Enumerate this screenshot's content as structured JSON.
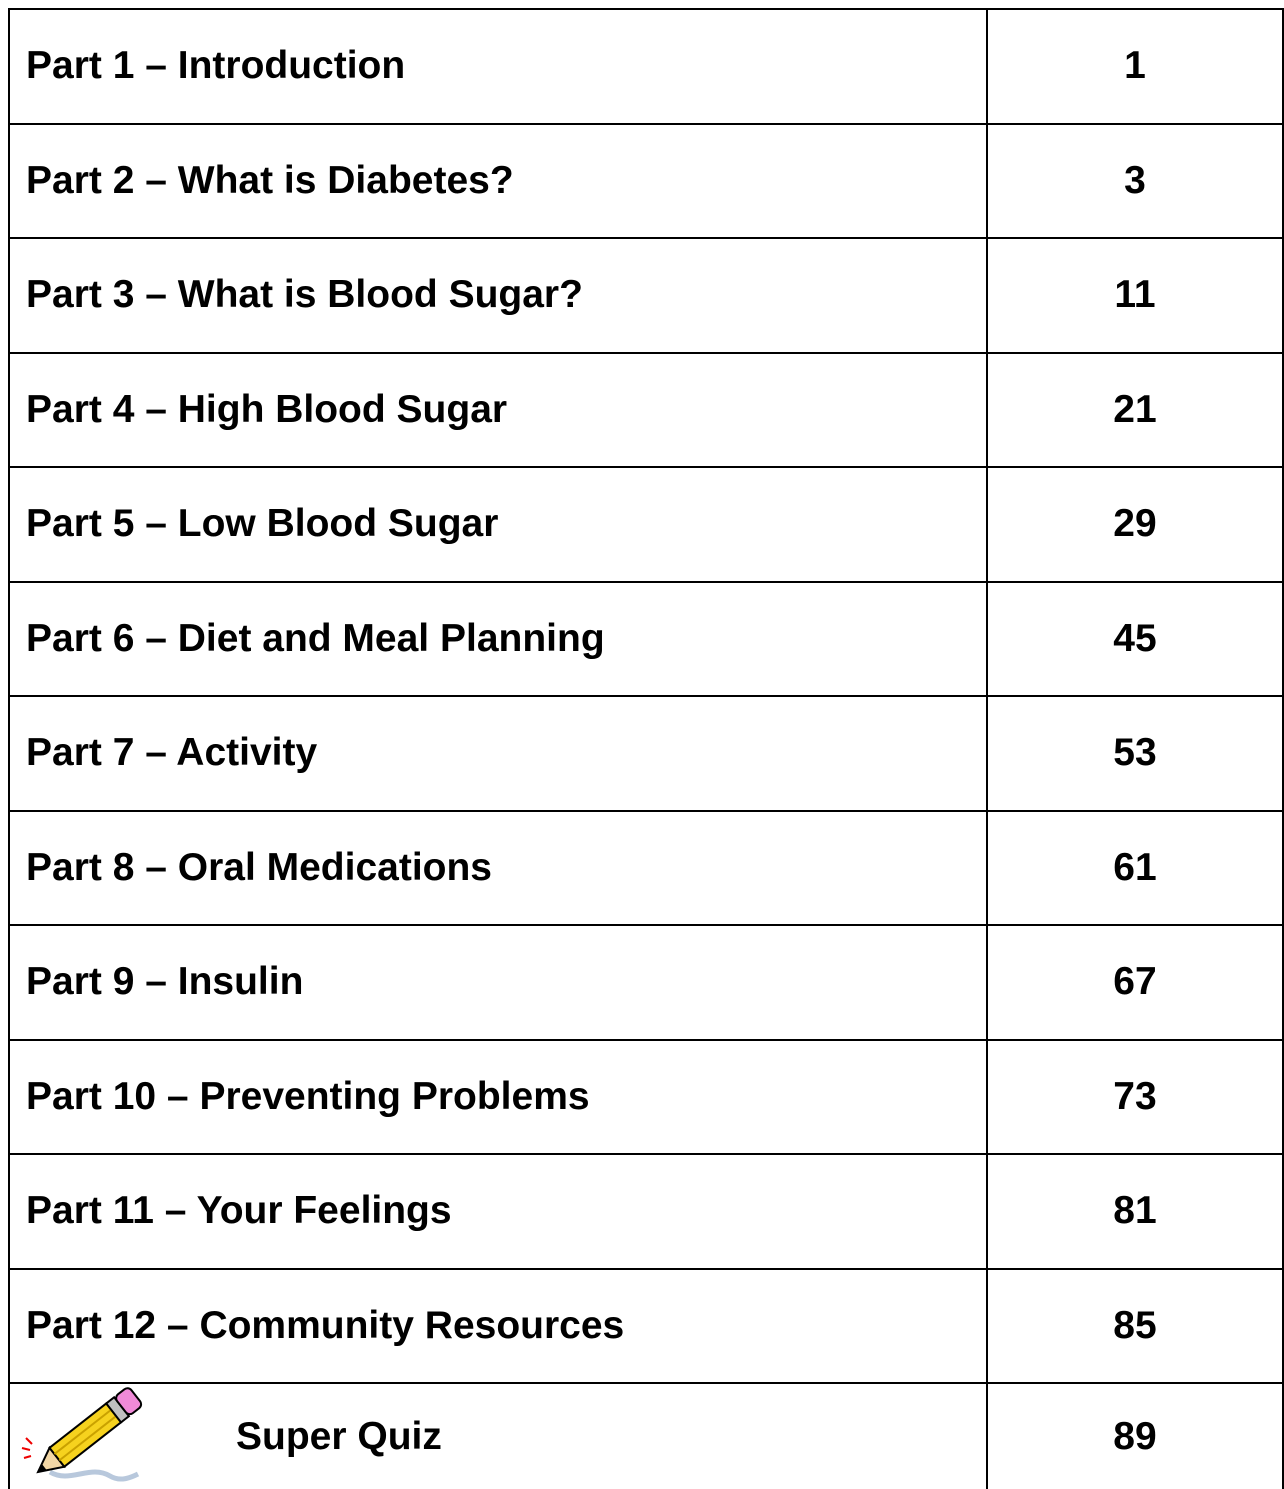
{
  "table": {
    "rows": [
      [
        "Part 1 – Introduction",
        "1"
      ],
      [
        "Part 2 – What is Diabetes?",
        "3"
      ],
      [
        "Part 3 – What is Blood Sugar?",
        "11"
      ],
      [
        "Part 4 – High Blood Sugar",
        "21"
      ],
      [
        "Part 5 – Low Blood Sugar",
        "29"
      ],
      [
        "Part 6 – Diet and Meal Planning",
        "45"
      ],
      [
        "Part 7 – Activity",
        "53"
      ],
      [
        "Part 8 – Oral Medications",
        "61"
      ],
      [
        "Part 9 – Insulin",
        "67"
      ],
      [
        "Part 10 – Preventing Problems",
        "73"
      ],
      [
        "Part 11 – Your Feelings",
        "81"
      ],
      [
        "Part 12 – Community Resources",
        "85"
      ],
      [
        "Super Quiz",
        "89"
      ]
    ]
  }
}
